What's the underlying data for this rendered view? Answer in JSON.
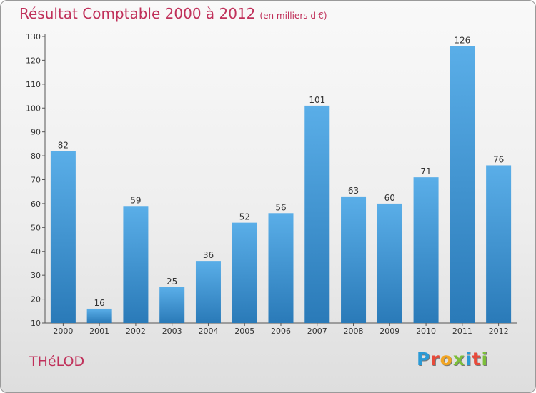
{
  "header": {
    "title": "Résultat Comptable 2000 à 2012",
    "subtitle": "(en milliers d'€)"
  },
  "footer": {
    "commune": "THéLOD",
    "logo_letters": [
      "P",
      "r",
      "o",
      "x",
      "i",
      "t",
      "i"
    ],
    "logo_colors": [
      "#2b9ad6",
      "#e84a3a",
      "#f2a523",
      "#7cbf3a",
      "#2b9ad6",
      "#e84a3a",
      "#7cbf3a"
    ]
  },
  "chart_data": {
    "type": "bar",
    "title": "Résultat Comptable 2000 à 2012",
    "subtitle": "(en milliers d'€)",
    "categories": [
      "2000",
      "2001",
      "2002",
      "2003",
      "2004",
      "2005",
      "2006",
      "2007",
      "2008",
      "2009",
      "2010",
      "2011",
      "2012"
    ],
    "values": [
      82,
      16,
      59,
      25,
      36,
      52,
      56,
      101,
      63,
      60,
      71,
      126,
      76
    ],
    "ylim": [
      10,
      130
    ],
    "yticks": [
      10,
      20,
      30,
      40,
      50,
      60,
      70,
      80,
      90,
      100,
      110,
      120,
      130
    ],
    "grid": false,
    "bar_color_top": "#5aaee8",
    "bar_color_bottom": "#2a7ab8"
  }
}
